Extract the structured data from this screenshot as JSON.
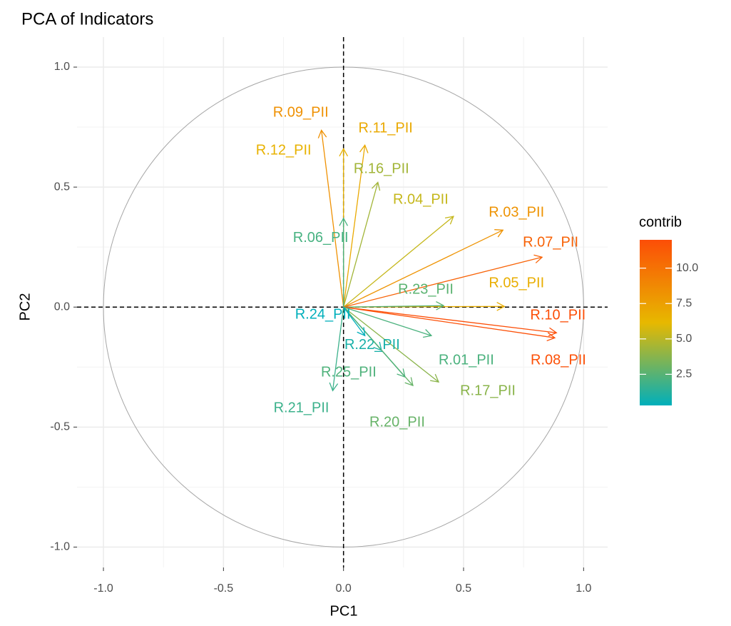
{
  "chart_data": {
    "type": "pca_variables",
    "title": "PCA of Indicators",
    "x_label": "PC1",
    "y_label": "PC2",
    "xlim": [
      -1.11,
      1.1
    ],
    "ylim": [
      -1.085,
      1.125
    ],
    "xticks": [
      {
        "value": -1,
        "label": "-1.0"
      },
      -0.5,
      {
        "value": 0,
        "label": "0.0"
      },
      0.5,
      {
        "value": 1,
        "label": "1.0"
      }
    ],
    "yticks": [
      {
        "value": -1,
        "label": "-1.0"
      },
      -0.5,
      {
        "value": 0,
        "label": "0.0"
      },
      0.5,
      {
        "value": 1,
        "label": "1.0"
      }
    ],
    "grid": true,
    "unit_circle": true,
    "variables": {
      "names": [
        "R.09_PII",
        "R.12_PII",
        "R.11_PII",
        "R.16_PII",
        "R.04_PII",
        "R.06_PII",
        "R.03_PII",
        "R.07_PII",
        "R.05_PII",
        "R.23_PII",
        "R.10_PII",
        "R.08_PII",
        "R.01_PII",
        "R.17_PII",
        "R.20_PII",
        "R.22_PII",
        "R.25_PII",
        "R.21_PII",
        "R.24_PII"
      ],
      "x": [
        -0.092,
        0,
        0.089,
        0.143,
        0.458,
        0,
        0.664,
        0.827,
        0.67,
        0.417,
        0.887,
        0.88,
        0.366,
        0.396,
        0.289,
        0.158,
        0.256,
        -0.045,
        0.089
      ],
      "y": [
        0.737,
        0.66,
        0.675,
        0.52,
        0.378,
        0.37,
        0.321,
        0.208,
        0.003,
        0.006,
        -0.107,
        -0.128,
        -0.119,
        -0.312,
        -0.327,
        -0.18,
        -0.291,
        -0.348,
        -0.119
      ],
      "contrib": [
        8.3,
        6.5,
        7.0,
        4.4,
        5.3,
        2.1,
        8.2,
        10.9,
        6.7,
        2.6,
        12.0,
        11.9,
        2.2,
        3.8,
        2.9,
        0.9,
        2.3,
        1.8,
        0.3
      ]
    },
    "legend_title": "contrib",
    "color_scale": [
      "#00AFBB",
      "#E7B800",
      "#FC4E07"
    ],
    "color_ticks": [
      2.5,
      {
        "value": 5,
        "label": "5.0"
      },
      7.5,
      {
        "value": 10,
        "label": "10.0"
      }
    ]
  }
}
